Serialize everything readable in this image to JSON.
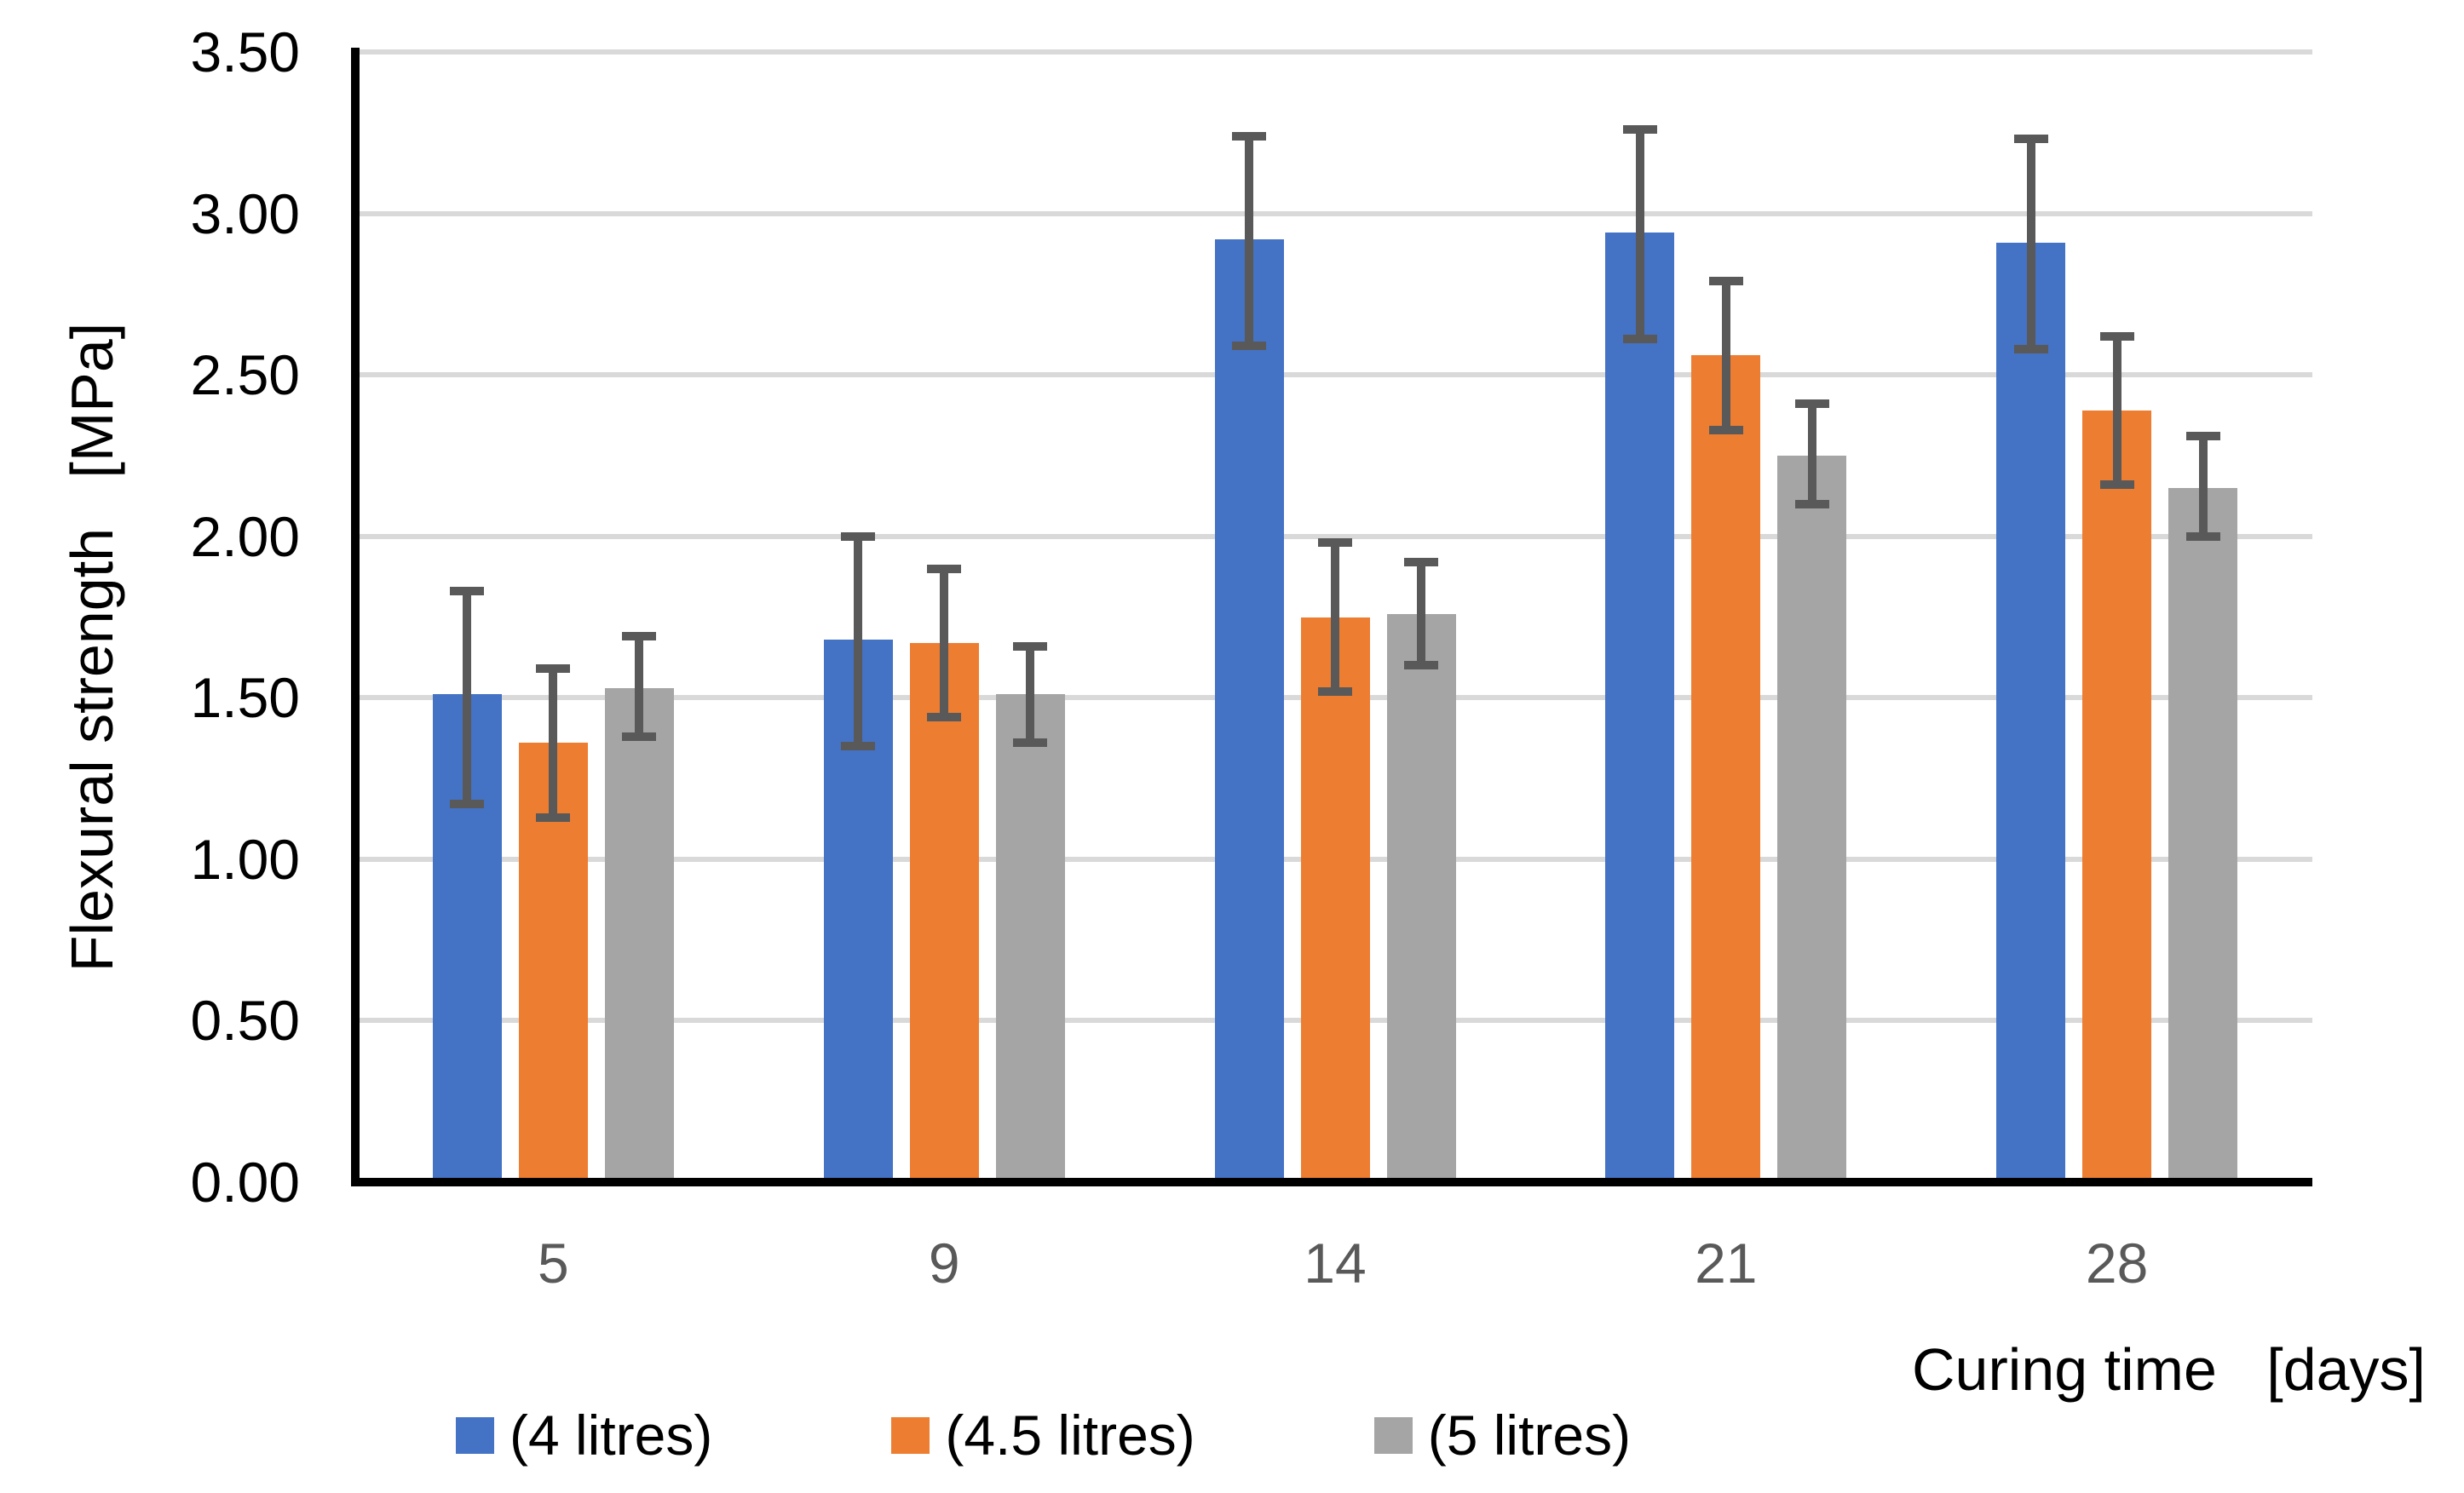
{
  "chart_data": {
    "type": "bar",
    "title": "",
    "categories": [
      "5",
      "9",
      "14",
      "21",
      "28"
    ],
    "xlabel": "Curing time   [days]",
    "ylabel": "Flexural strength   [MPa]",
    "ylim": [
      0,
      3.5
    ],
    "ytick_step": 0.5,
    "ytick_labels": [
      "0.00",
      "0.50",
      "1.00",
      "1.50",
      "2.00",
      "2.50",
      "3.00",
      "3.50"
    ],
    "grid": true,
    "legend_position": "bottom",
    "series": [
      {
        "name": "(4 litres)",
        "color": "#4472C4",
        "values": [
          1.51,
          1.68,
          2.92,
          2.94,
          2.91
        ],
        "error_upper": [
          1.83,
          2.0,
          3.24,
          3.26,
          3.23
        ],
        "error_lower": [
          1.17,
          1.35,
          2.59,
          2.61,
          2.58
        ]
      },
      {
        "name": "(4.5 litres)",
        "color": "#ED7D31",
        "values": [
          1.36,
          1.67,
          1.75,
          2.56,
          2.39
        ],
        "error_upper": [
          1.59,
          1.9,
          1.98,
          2.79,
          2.62
        ],
        "error_lower": [
          1.13,
          1.44,
          1.52,
          2.33,
          2.16
        ]
      },
      {
        "name": "(5 litres)",
        "color": "#A5A5A5",
        "values": [
          1.53,
          1.51,
          1.76,
          2.25,
          2.15
        ],
        "error_upper": [
          1.69,
          1.66,
          1.92,
          2.41,
          2.31
        ],
        "error_lower": [
          1.38,
          1.36,
          1.6,
          2.1,
          2.0
        ]
      }
    ],
    "colors": {
      "gridline": "#D9D9D9",
      "axis_line": "#000000",
      "error_bar": "#595959",
      "x_tick_label": "#595959",
      "y_tick_label": "#000000",
      "axis_title": "#000000"
    }
  }
}
